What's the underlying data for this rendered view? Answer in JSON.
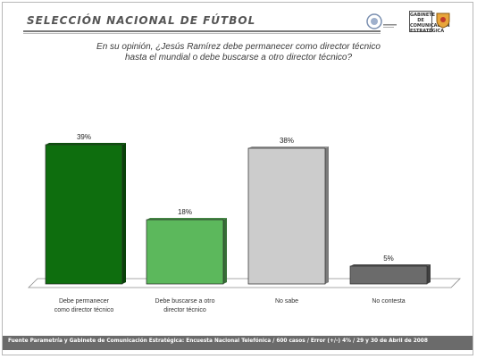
{
  "header": {
    "title": "SELECCIÓN NACIONAL DE FÚTBOL",
    "logo_text": "GABINETE DE COMUNICACIÓN ESTRATÉGICA"
  },
  "question": {
    "line1": "En su opinión, ¿Jesús Ramírez debe permanecer como director técnico",
    "line2": "hasta el mundial o debe buscarse a otro director técnico?"
  },
  "chart_data": {
    "type": "bar",
    "categories": [
      [
        "Debe permanecer",
        "como director técnico"
      ],
      [
        "Debe buscarse a otro",
        "director técnico"
      ],
      [
        "No sabe"
      ],
      [
        "No contesta"
      ]
    ],
    "values": [
      39,
      18,
      38,
      5
    ],
    "value_labels": [
      "39%",
      "18%",
      "38%",
      "5%"
    ],
    "colors": [
      "#0e6e0e",
      "#5cb85c",
      "#cccccc",
      "#6b6b6b"
    ],
    "ylim": [
      0,
      42
    ],
    "grid": false,
    "legend": "none"
  },
  "footer": {
    "text": "Fuente Parametría y Gabinete de Comunicación Estratégica: Encuesta Nacional Telefónica / 600 casos / Error (+/-) 4% / 29 y 30 de Abril de 2008"
  }
}
